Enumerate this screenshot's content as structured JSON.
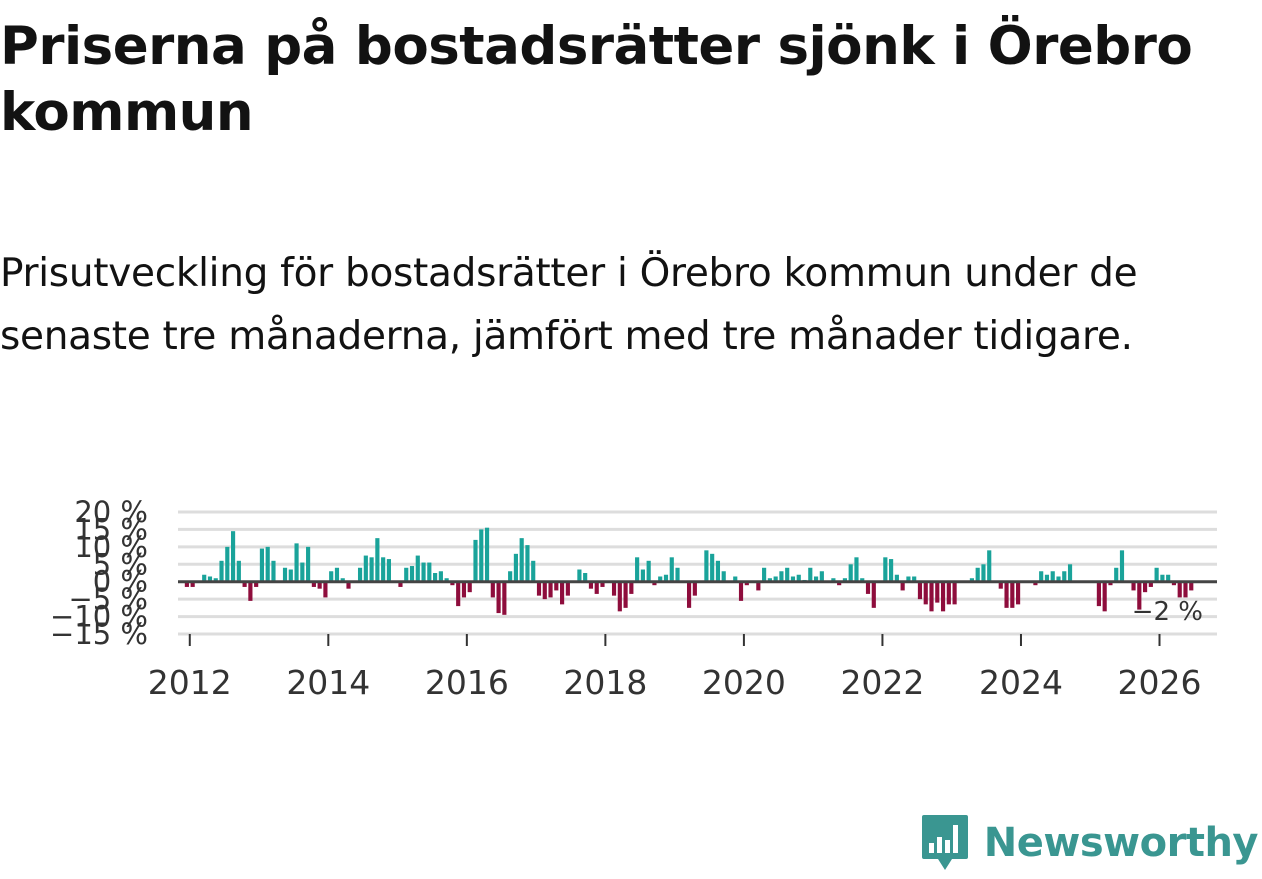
{
  "title": "Priserna på bostadsrätter sjönk i Örebro kommun",
  "subtitle": "Prisutveckling för bostadsrätter i Örebro kommun under de senaste tre månaderna, jämfört med tre månader tidigare.",
  "brand": {
    "name": "Newsworthy",
    "color": "#3a9691",
    "icon": "newsworthy-logo-icon"
  },
  "colors": {
    "positive": "#1aa39a",
    "negative": "#8e0d3c",
    "zero_line": "#444444",
    "grid": "#dddddd"
  },
  "chart_data": {
    "type": "bar",
    "title": "Prisutveckling för bostadsrätter i Örebro kommun",
    "xlabel": "",
    "ylabel": "",
    "ylim": [
      -15,
      20
    ],
    "yticks": [
      20,
      15,
      10,
      5,
      0,
      -5,
      -10,
      -15
    ],
    "ytick_labels": [
      "20 %",
      "15 %",
      "10 %",
      "5 %",
      "0 %",
      "−5 %",
      "−10 %",
      "−15 %"
    ],
    "xtick_years": [
      2012,
      2014,
      2016,
      2018,
      2020,
      2022,
      2024,
      2026
    ],
    "x_start": 2011.83,
    "x_end": 2026.83,
    "last_value_label": "−2 %",
    "series": [
      {
        "name": "Prisutveckling",
        "start_year": 2011,
        "start_month": 12,
        "values": [
          -1.5,
          -1.5,
          0,
          2,
          1.5,
          1,
          6,
          10,
          14.5,
          6,
          -1.5,
          -5.5,
          -1.5,
          9.5,
          10,
          6,
          0,
          4,
          3.5,
          11,
          5.5,
          10,
          -1.5,
          -2,
          -4.5,
          3,
          4,
          1,
          -2,
          0,
          4,
          7.5,
          7,
          12.5,
          7,
          6.5,
          0,
          -1.5,
          4,
          4.5,
          7.5,
          5.5,
          5.5,
          2.5,
          3,
          1,
          -1,
          -7,
          -4.5,
          -3,
          12,
          15,
          15.5,
          -4.5,
          -9,
          -9.5,
          3,
          8,
          12.5,
          10.5,
          6,
          -4,
          -5,
          -4.5,
          -2.5,
          -6.5,
          -4,
          0,
          3.5,
          2.5,
          -2,
          -3.5,
          -1.5,
          0,
          -4,
          -8.5,
          -7.5,
          -3.5,
          7,
          3.5,
          6,
          -1,
          1.5,
          2,
          7,
          4,
          0,
          -7.5,
          -4,
          0,
          9,
          8,
          6,
          3,
          0,
          1.5,
          -5.5,
          -1,
          0,
          -2.5,
          4,
          1,
          1.5,
          3,
          4,
          1.5,
          2,
          0.5,
          4,
          1.5,
          3,
          0,
          1,
          -1,
          1,
          5,
          7,
          1,
          -3.5,
          -7.5,
          0,
          7,
          6.5,
          2,
          -2.5,
          1.5,
          1.5,
          -5,
          -6.5,
          -8.5,
          -6,
          -8.5,
          -6.5,
          -6.5,
          0,
          0,
          1,
          4,
          5,
          9,
          0,
          -2,
          -7.5,
          -7.5,
          -6.5,
          0,
          0,
          -1,
          3,
          2,
          3,
          1.5,
          3,
          5,
          0,
          0,
          0,
          0,
          -7,
          -8.5,
          -1,
          4,
          9,
          0,
          -2.5,
          -8,
          -3,
          -1.5,
          4,
          2,
          2,
          -1,
          -4.5,
          -4.5,
          -2.5
        ]
      }
    ]
  }
}
